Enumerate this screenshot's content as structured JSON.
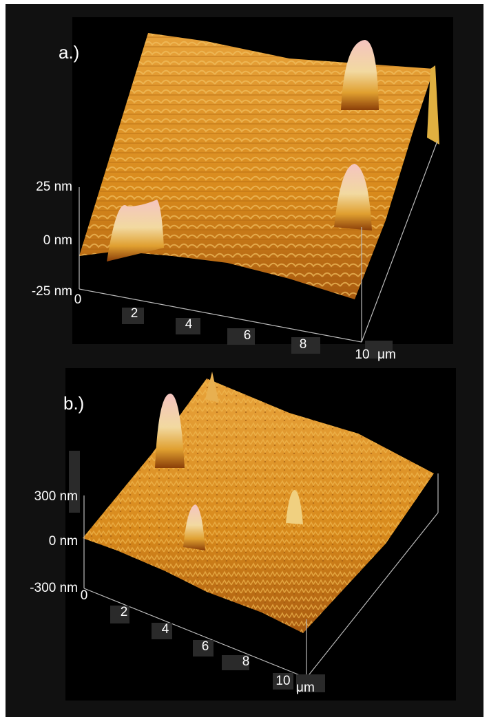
{
  "panels": [
    {
      "label": "a.)",
      "z_ticks": [
        "25  nm",
        "0 nm",
        "-25 nm"
      ],
      "x_ticks": [
        "0",
        "2",
        "4",
        "6",
        "8",
        "10"
      ],
      "unit": "μm"
    },
    {
      "label": "b.)",
      "z_ticks": [
        "300 nm",
        "0 nm",
        "-300 nm"
      ],
      "x_ticks": [
        "0",
        "2",
        "4",
        "6",
        "8",
        "10"
      ],
      "unit": "μm"
    }
  ]
}
